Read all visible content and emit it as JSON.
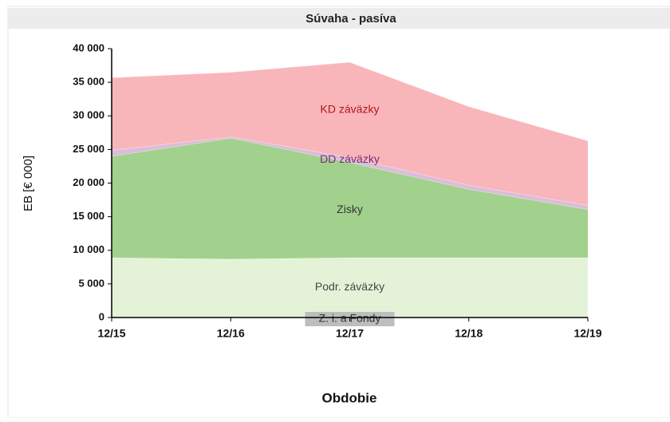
{
  "chart_data": {
    "type": "area",
    "title": "Súvaha - pasíva",
    "ylabel": "EB [€ 000]",
    "xlabel": "Obdobie",
    "categories": [
      "12/15",
      "12/16",
      "12/17",
      "12/18",
      "12/19"
    ],
    "stacked": true,
    "series": [
      {
        "name": "Z. i. a Fondy",
        "color": "#c9c9c9",
        "values": [
          100,
          100,
          100,
          100,
          100
        ]
      },
      {
        "name": "Podr. záväzky",
        "color": "#e4f3d8",
        "values": [
          8800,
          8600,
          8800,
          8800,
          8800
        ]
      },
      {
        "name": "Zisky",
        "color": "#a2d18d",
        "values": [
          15100,
          18000,
          14200,
          10200,
          7200
        ]
      },
      {
        "name": "DD záväzky",
        "color": "#dcbcd9",
        "values": [
          900,
          200,
          700,
          600,
          600
        ]
      },
      {
        "name": "KD záväzky",
        "color": "#f9b6ba",
        "values": [
          10800,
          9600,
          14200,
          11700,
          9600
        ]
      }
    ],
    "ylim": [
      0,
      40000
    ],
    "yticks": [
      0,
      {
        "value": 5000,
        "label": "5 000"
      },
      {
        "value": 10000,
        "label": "10 000"
      },
      {
        "value": 15000,
        "label": "15 000"
      },
      {
        "value": 20000,
        "label": "20 000"
      },
      {
        "value": 25000,
        "label": "25 000"
      },
      {
        "value": 30000,
        "label": "30 000"
      },
      {
        "value": 35000,
        "label": "35 000"
      },
      {
        "value": 40000,
        "label": "40 000"
      }
    ],
    "grid": false
  }
}
